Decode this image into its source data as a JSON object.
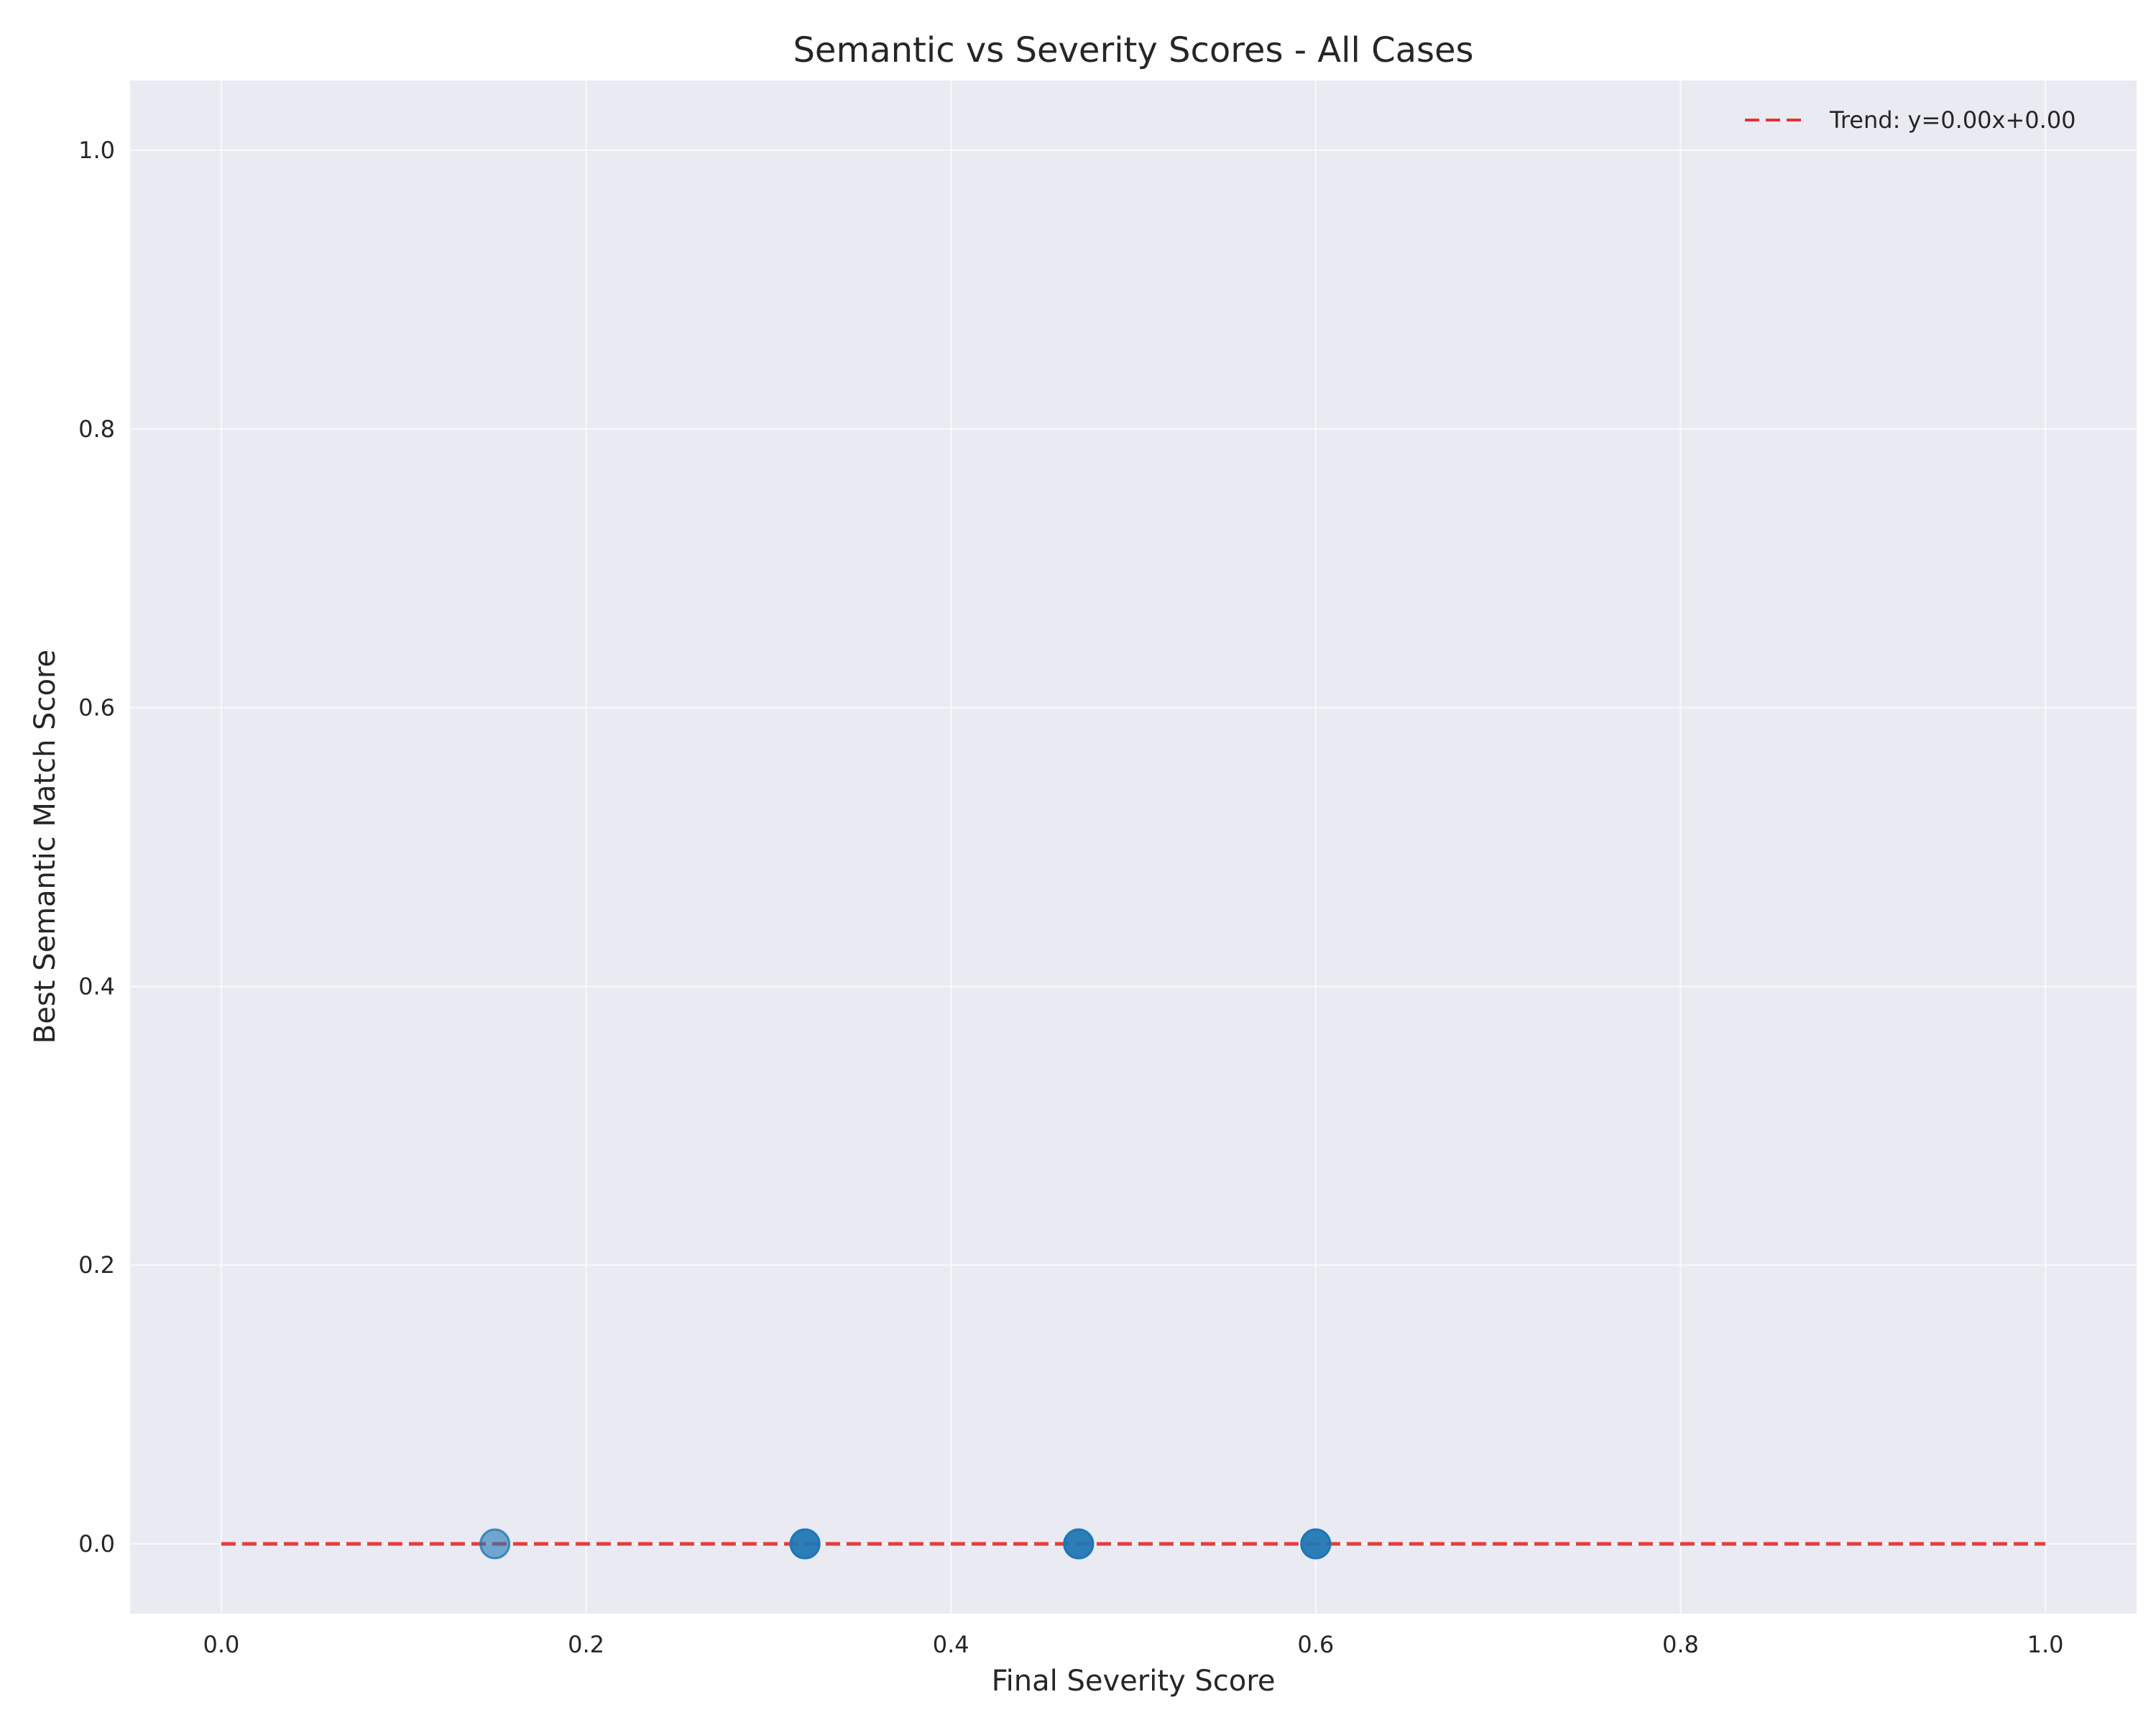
{
  "chart_data": {
    "type": "scatter",
    "title": "Semantic vs Severity Scores - All Cases",
    "xlabel": "Final Severity Score",
    "ylabel": "Best Semantic Match Score",
    "xlim": [
      -0.05,
      1.05
    ],
    "ylim": [
      -0.05,
      1.05
    ],
    "xticks": [
      0.0,
      0.2,
      0.4,
      0.6,
      0.8,
      1.0
    ],
    "yticks": [
      0.0,
      0.2,
      0.4,
      0.6,
      0.8,
      1.0
    ],
    "xtick_labels": [
      "0.0",
      "0.2",
      "0.4",
      "0.6",
      "0.8",
      "1.0"
    ],
    "ytick_labels": [
      "0.0",
      "0.2",
      "0.4",
      "0.6",
      "0.8",
      "1.0"
    ],
    "grid": true,
    "legend_position": "top-right",
    "points": [
      {
        "x": 0.15,
        "y": 0.0
      },
      {
        "x": 0.32,
        "y": 0.0
      },
      {
        "x": 0.32,
        "y": 0.0
      },
      {
        "x": 0.32,
        "y": 0.0
      },
      {
        "x": 0.47,
        "y": 0.0
      },
      {
        "x": 0.47,
        "y": 0.0
      },
      {
        "x": 0.47,
        "y": 0.0
      },
      {
        "x": 0.6,
        "y": 0.0
      },
      {
        "x": 0.6,
        "y": 0.0
      },
      {
        "x": 0.6,
        "y": 0.0
      }
    ],
    "trend": {
      "label": "Trend: y=0.00x+0.00",
      "slope": 0.0,
      "intercept": 0.0,
      "x_range": [
        0.0,
        1.0
      ]
    },
    "colors": {
      "background": "#eaeaf2",
      "grid": "#ffffff",
      "point": "#1f77b4",
      "trend": "#e53333"
    }
  }
}
